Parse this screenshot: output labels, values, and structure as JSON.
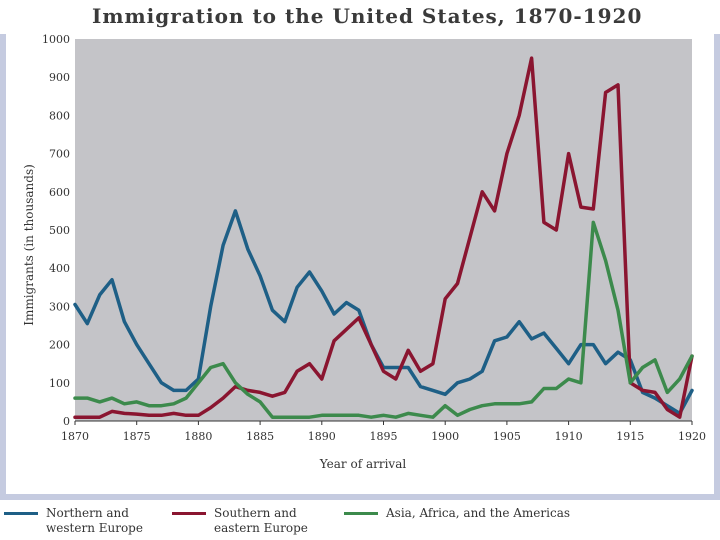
{
  "title": "Immigration to the United States, 1870-1920",
  "colors": {
    "plot_bg": "#c4c4c8",
    "slide_border": "#c5cbe0",
    "series": [
      "#1e5f86",
      "#8a1530",
      "#3c8a4c"
    ]
  },
  "chart_data": {
    "type": "line",
    "title": "Immigration to the United States, 1870-1920",
    "xlabel": "Year of arrival",
    "ylabel": "Immigrants (in thousands)",
    "xlim": [
      1870,
      1920
    ],
    "ylim": [
      0,
      1000
    ],
    "xticks": [
      1870,
      1875,
      1880,
      1885,
      1890,
      1895,
      1900,
      1905,
      1910,
      1915,
      1920
    ],
    "yticks": [
      0,
      100,
      200,
      300,
      400,
      500,
      600,
      700,
      800,
      900,
      1000
    ],
    "x": [
      1870,
      1871,
      1872,
      1873,
      1874,
      1875,
      1876,
      1877,
      1878,
      1879,
      1880,
      1881,
      1882,
      1883,
      1884,
      1885,
      1886,
      1887,
      1888,
      1889,
      1890,
      1891,
      1892,
      1893,
      1894,
      1895,
      1896,
      1897,
      1898,
      1899,
      1900,
      1901,
      1902,
      1903,
      1904,
      1905,
      1906,
      1907,
      1908,
      1909,
      1910,
      1911,
      1912,
      1913,
      1914,
      1915,
      1916,
      1917,
      1918,
      1919,
      1920
    ],
    "series": [
      {
        "name": "Northern and western Europe",
        "values": [
          305,
          255,
          330,
          370,
          260,
          200,
          150,
          100,
          80,
          80,
          110,
          300,
          460,
          550,
          450,
          380,
          290,
          260,
          350,
          390,
          340,
          280,
          310,
          290,
          200,
          140,
          140,
          140,
          90,
          80,
          70,
          100,
          110,
          130,
          210,
          220,
          260,
          215,
          230,
          190,
          150,
          200,
          200,
          150,
          180,
          160,
          75,
          60,
          40,
          20,
          80
        ]
      },
      {
        "name": "Southern and eastern Europe",
        "values": [
          10,
          10,
          10,
          25,
          20,
          18,
          15,
          15,
          20,
          15,
          15,
          35,
          60,
          90,
          80,
          75,
          65,
          75,
          130,
          150,
          110,
          210,
          240,
          270,
          200,
          130,
          110,
          185,
          130,
          150,
          320,
          360,
          480,
          600,
          550,
          700,
          800,
          950,
          520,
          500,
          700,
          560,
          555,
          860,
          880,
          100,
          80,
          75,
          30,
          10,
          170
        ]
      },
      {
        "name": "Asia, Africa, and the Americas",
        "values": [
          60,
          60,
          50,
          60,
          45,
          50,
          40,
          40,
          45,
          60,
          100,
          140,
          150,
          100,
          70,
          50,
          10,
          10,
          10,
          10,
          15,
          15,
          15,
          15,
          10,
          15,
          10,
          20,
          15,
          10,
          40,
          15,
          30,
          40,
          45,
          45,
          45,
          50,
          85,
          85,
          110,
          100,
          520,
          420,
          290,
          100,
          140,
          160,
          75,
          110,
          170
        ]
      }
    ]
  },
  "legend": {
    "items": [
      {
        "line1": "Northern and",
        "line2": "western Europe"
      },
      {
        "line1": "Southern and",
        "line2": "eastern Europe"
      },
      {
        "line1": "Asia, Africa, and the Americas",
        "line2": ""
      }
    ]
  }
}
